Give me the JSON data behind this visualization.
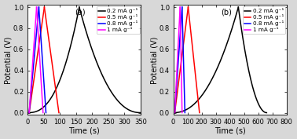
{
  "panel_a": {
    "label": "(a)",
    "xlim": [
      0,
      350
    ],
    "ylim": [
      -0.02,
      1.02
    ],
    "xticks": [
      0,
      50,
      100,
      150,
      200,
      250,
      300,
      350
    ],
    "yticks": [
      0.0,
      0.2,
      0.4,
      0.6,
      0.8,
      1.0
    ],
    "black_charge_t": [
      0,
      160
    ],
    "black_discharge_t": [
      160,
      350
    ],
    "curves": [
      {
        "label": "0.2 mA g⁻¹",
        "color": "black",
        "charge_t": [
          0,
          160
        ],
        "discharge_t": [
          160,
          350
        ],
        "charge_exp": 2.5,
        "discharge_exp": 2.2
      },
      {
        "label": "0.5 mA g⁻¹",
        "color": "red",
        "charge_t": [
          5,
          52
        ],
        "discharge_t": [
          52,
          97
        ],
        "charge_exp": 1.0,
        "discharge_exp": 1.0
      },
      {
        "label": "0.8 mA g⁻¹",
        "color": "blue",
        "charge_t": [
          5,
          35
        ],
        "discharge_t": [
          35,
          57
        ],
        "charge_exp": 1.0,
        "discharge_exp": 1.0
      },
      {
        "label": "1 mA g⁻¹",
        "color": "magenta",
        "charge_t": [
          5,
          28
        ],
        "discharge_t": [
          28,
          48
        ],
        "charge_exp": 1.0,
        "discharge_exp": 1.0
      }
    ]
  },
  "panel_b": {
    "label": "(b)",
    "xlim": [
      0,
      800
    ],
    "ylim": [
      -0.02,
      1.02
    ],
    "xticks": [
      0,
      100,
      200,
      300,
      400,
      500,
      600,
      700,
      800
    ],
    "yticks": [
      0.0,
      0.2,
      0.4,
      0.6,
      0.8,
      1.0
    ],
    "curves": [
      {
        "label": "0.2 mA g⁻¹",
        "color": "black",
        "charge_t": [
          0,
          460
        ],
        "discharge_t": [
          460,
          660
        ],
        "charge_exp": 2.2,
        "discharge_exp": 2.0
      },
      {
        "label": "0.5 mA g⁻¹",
        "color": "red",
        "charge_t": [
          10,
          105
        ],
        "discharge_t": [
          105,
          185
        ],
        "charge_exp": 1.0,
        "discharge_exp": 1.0
      },
      {
        "label": "0.8 mA g⁻¹",
        "color": "blue",
        "charge_t": [
          10,
          62
        ],
        "discharge_t": [
          62,
          82
        ],
        "charge_exp": 1.0,
        "discharge_exp": 1.0
      },
      {
        "label": "1 mA g⁻¹",
        "color": "magenta",
        "charge_t": [
          10,
          48
        ],
        "discharge_t": [
          48,
          62
        ],
        "charge_exp": 1.0,
        "discharge_exp": 1.0
      }
    ]
  },
  "xlabel": "Time (s)",
  "ylabel": "Potential (V)",
  "bg_color": "#d8d8d8",
  "plot_bg_color": "#ffffff",
  "legend_fontsize": 5.2,
  "label_fontsize": 7,
  "tick_fontsize": 6,
  "linewidth": 1.1
}
